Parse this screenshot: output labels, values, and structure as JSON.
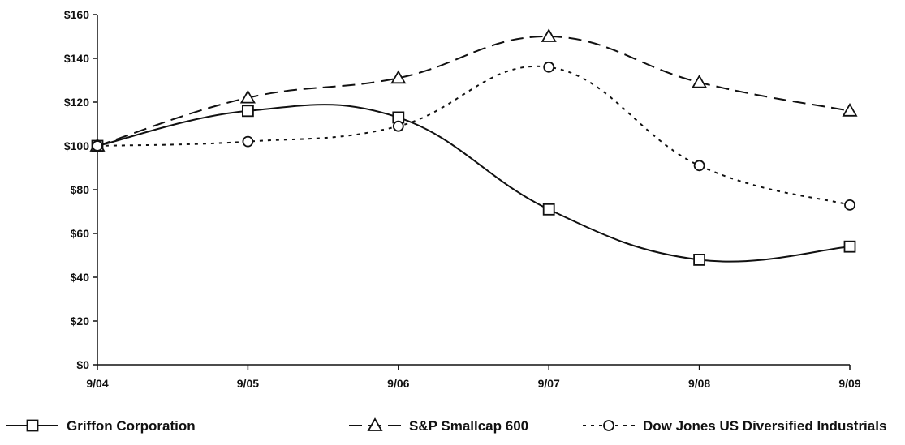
{
  "chart_data": {
    "type": "line",
    "categories": [
      "9/04",
      "9/05",
      "9/06",
      "9/07",
      "9/08",
      "9/09"
    ],
    "y_tick_labels": [
      "$0",
      "$20",
      "$40",
      "$60",
      "$80",
      "$100",
      "$120",
      "$140",
      "$160"
    ],
    "ylim": [
      0,
      160
    ],
    "grid": false,
    "legend_position": "bottom",
    "series": [
      {
        "name": "Griffon Corporation",
        "values": [
          100,
          116,
          113,
          71,
          48,
          54
        ],
        "line_style": "solid",
        "marker": "square",
        "color": "#111111"
      },
      {
        "name": "S&P Smallcap 600",
        "values": [
          100,
          122,
          131,
          150,
          129,
          116
        ],
        "line_style": "dashed",
        "marker": "triangle",
        "color": "#111111"
      },
      {
        "name": "Dow Jones US Diversified Industrials",
        "values": [
          100,
          102,
          109,
          136,
          91,
          73
        ],
        "line_style": "dotted",
        "marker": "circle",
        "color": "#111111"
      }
    ]
  }
}
